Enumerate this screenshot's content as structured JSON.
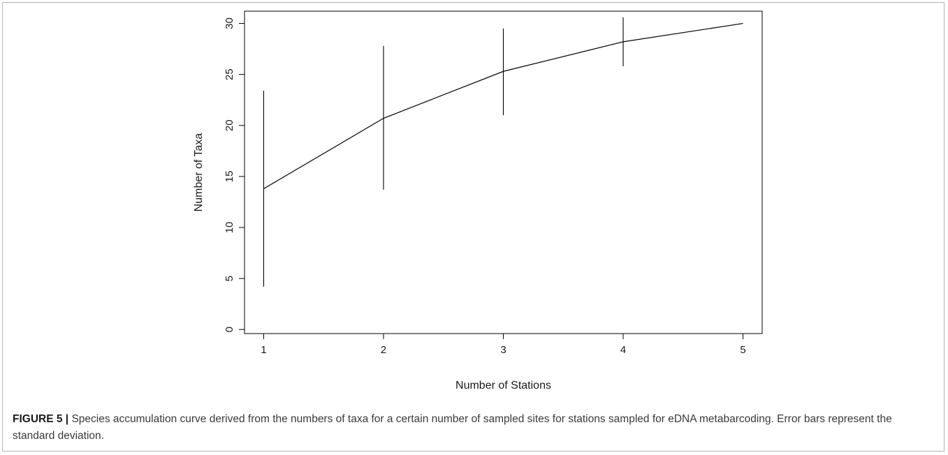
{
  "chart_data": {
    "type": "line",
    "x": [
      1,
      2,
      3,
      4,
      5
    ],
    "y": [
      13.8,
      20.7,
      25.3,
      28.2,
      30.0
    ],
    "error_low": [
      4.2,
      13.7,
      21.0,
      25.8,
      30.0
    ],
    "error_high": [
      23.4,
      27.8,
      29.5,
      30.6,
      30.0
    ],
    "error_bars": "standard deviation",
    "xlabel": "Number of Stations",
    "ylabel": "Number of Taxa",
    "xticks": [
      "1",
      "2",
      "3",
      "4",
      "5"
    ],
    "yticks": [
      "0",
      "5",
      "10",
      "15",
      "20",
      "25",
      "30"
    ],
    "xlim": [
      0.84,
      5.16
    ],
    "ylim": [
      -0.4,
      31.2
    ],
    "grid": false,
    "legend": "none",
    "line_color": "#000000"
  },
  "caption": {
    "label": "FIGURE 5 |",
    "text": " Species accumulation curve derived from the numbers of taxa for a certain number of sampled sites for stations sampled for eDNA metabarcoding. Error bars represent the standard deviation."
  }
}
